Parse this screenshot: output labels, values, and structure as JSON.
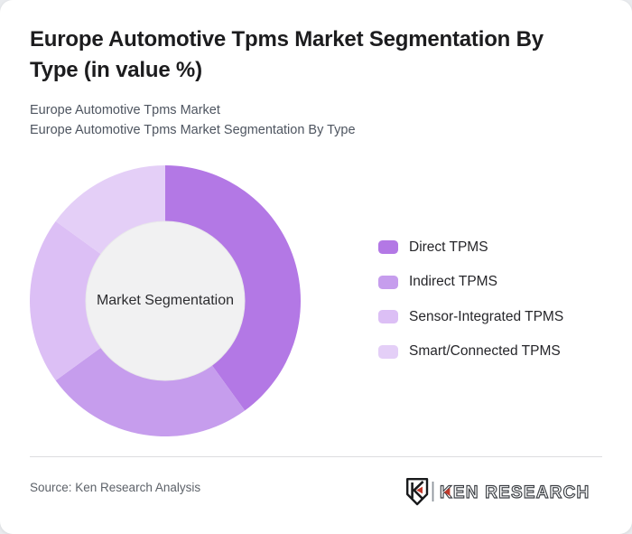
{
  "page": {
    "background_color": "#e9ebee",
    "card_color": "#ffffff"
  },
  "header": {
    "title": "Europe Automotive Tpms Market Segmentation By Type (in value %)",
    "subtitle_line1": "Europe Automotive Tpms Market",
    "subtitle_line2": "Europe Automotive Tpms Market Segmentation By Type"
  },
  "chart_data": {
    "type": "pie",
    "style": "donut",
    "title": "Europe Automotive Tpms Market Segmentation By Type (in value %)",
    "center_label": "Market Segmentation",
    "categories": [
      "Direct TPMS",
      "Indirect TPMS",
      "Sensor-Integrated TPMS",
      "Smart/Connected TPMS"
    ],
    "values": [
      40,
      25,
      20,
      15
    ],
    "unit": "value %",
    "colors": [
      "#b378e5",
      "#c69ded",
      "#dcbff5",
      "#e4cff7"
    ],
    "inner_circle_color": "#f1f1f2",
    "start_angle_deg_from_top": 0,
    "direction": "clockwise",
    "legend_position": "right",
    "outer_radius_px": 150,
    "inner_radius_px": 88
  },
  "footer": {
    "source": "Source: Ken Research Analysis",
    "brand_text": "KEN RESEARCH",
    "brand_accent_color": "#c0392b",
    "brand_outline_color": "#3b3f44",
    "brand_icon": "ken-research-shield-icon"
  }
}
